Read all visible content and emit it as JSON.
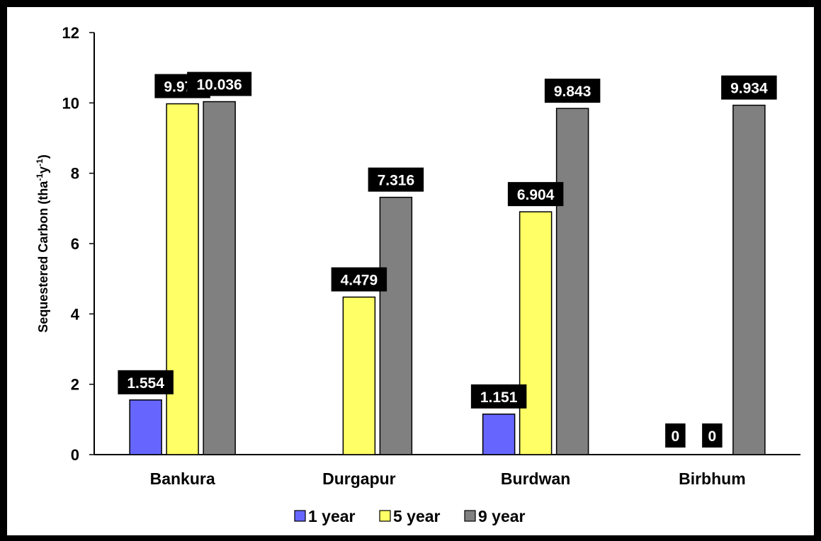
{
  "chart_data": {
    "type": "bar",
    "categories": [
      "Bankura",
      "Durgapur",
      "Burdwan",
      "Birbhum"
    ],
    "series": [
      {
        "name": "1 year",
        "color": "#6666ff",
        "values": [
          1.554,
          0,
          1.151,
          0
        ],
        "labels": [
          "1.554",
          "",
          "1.151",
          "0"
        ]
      },
      {
        "name": "5 year",
        "color": "#ffff66",
        "values": [
          9.975,
          4.479,
          6.904,
          0
        ],
        "labels": [
          "9.975",
          "4.479",
          "6.904",
          "0"
        ]
      },
      {
        "name": "9 year",
        "color": "#808080",
        "values": [
          10.036,
          7.316,
          9.843,
          9.934
        ],
        "labels": [
          "10.036",
          "7.316",
          "9.843",
          "9.934"
        ]
      }
    ],
    "ylabel": {
      "main": "Sequestered Carbon (tha",
      "sup1": "-1",
      "mid": "y",
      "sup2": "-1",
      "end": ")"
    },
    "xlabel": "",
    "ylim": [
      0,
      12
    ],
    "yticks": [
      "0",
      "2",
      "4",
      "6",
      "8",
      "10",
      "12"
    ],
    "grid": false,
    "legend_position": "bottom"
  }
}
